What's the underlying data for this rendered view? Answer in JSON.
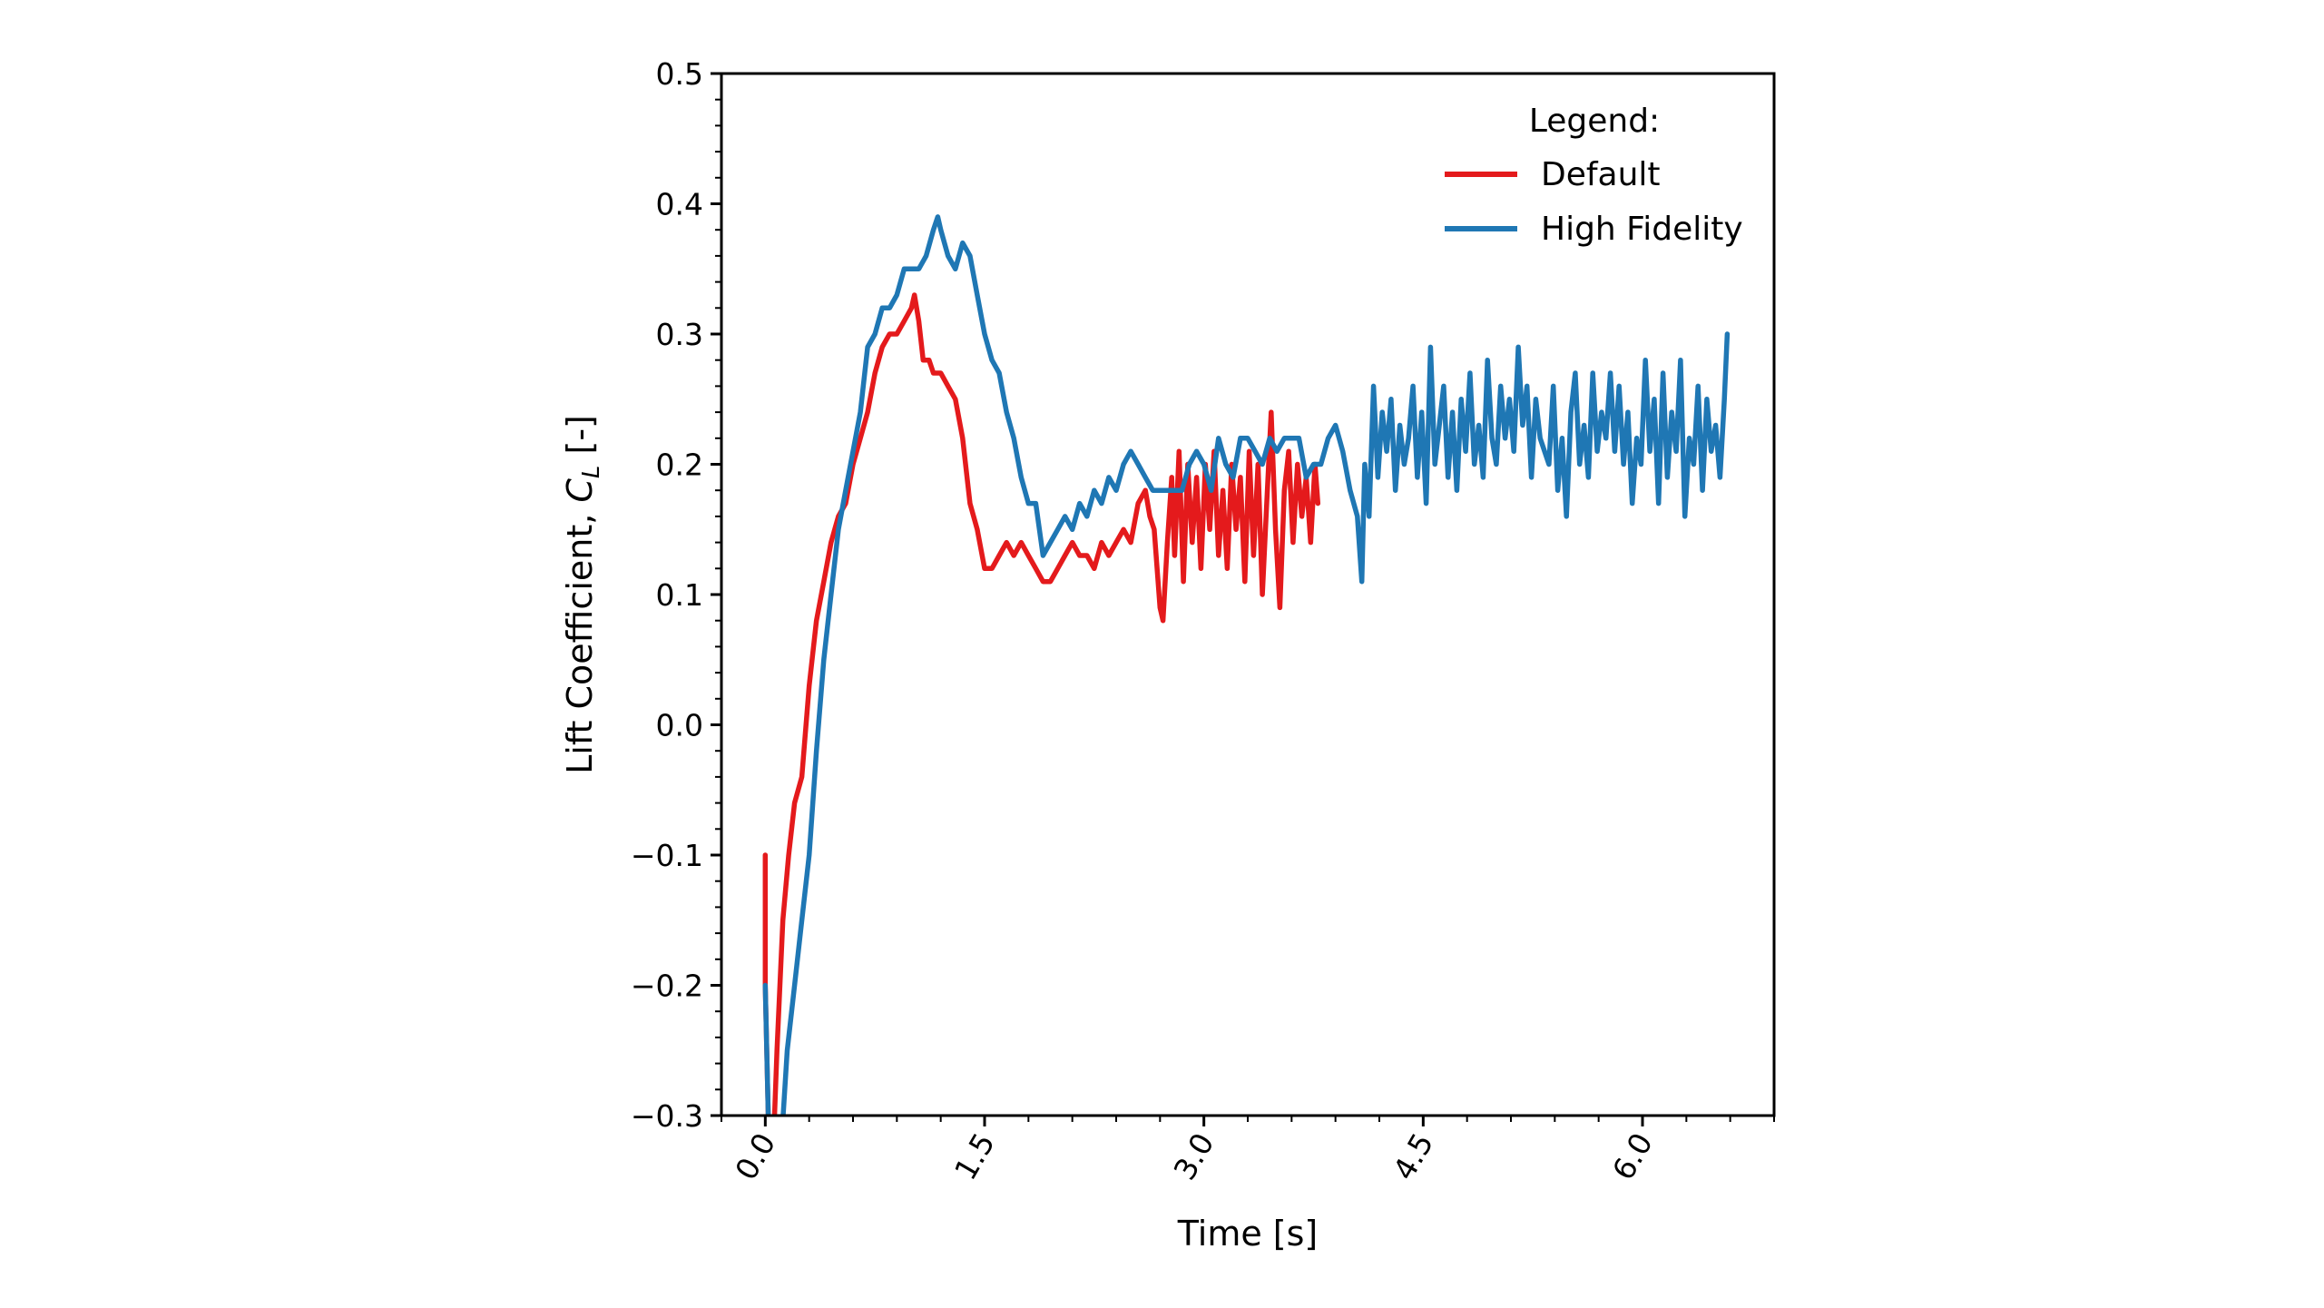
{
  "chart_data": {
    "type": "line",
    "title": "",
    "xlabel": "Time [s]",
    "ylabel_main": "Lift Coefficient, ",
    "ylabel_symbol": "C",
    "ylabel_subscript": "L",
    "ylabel_unit": " [-]",
    "xlim": [
      -0.3,
      6.9
    ],
    "ylim": [
      -0.3,
      0.5
    ],
    "xticks": [
      0.0,
      1.5,
      3.0,
      4.5,
      6.0
    ],
    "xtick_labels": [
      "0.0",
      "1.5",
      "3.0",
      "4.5",
      "6.0"
    ],
    "yticks": [
      -0.3,
      -0.2,
      -0.1,
      0.0,
      0.1,
      0.2,
      0.3,
      0.4,
      0.5
    ],
    "ytick_labels": [
      "−0.3",
      "−0.2",
      "−0.1",
      "0.0",
      "0.1",
      "0.2",
      "0.3",
      "0.4",
      "0.5"
    ],
    "grid": false,
    "legend": {
      "title": "Legend:",
      "placement": "top-right"
    },
    "series": [
      {
        "name": "Default",
        "color": "#e41a1c",
        "points": [
          [
            0.0,
            -0.1
          ],
          [
            0.0,
            -0.2
          ],
          [
            0.02,
            -0.3
          ],
          [
            0.05,
            -0.34
          ],
          [
            0.08,
            -0.25
          ],
          [
            0.12,
            -0.15
          ],
          [
            0.16,
            -0.1
          ],
          [
            0.2,
            -0.06
          ],
          [
            0.25,
            -0.04
          ],
          [
            0.3,
            0.03
          ],
          [
            0.35,
            0.08
          ],
          [
            0.4,
            0.11
          ],
          [
            0.45,
            0.14
          ],
          [
            0.5,
            0.16
          ],
          [
            0.55,
            0.17
          ],
          [
            0.6,
            0.2
          ],
          [
            0.65,
            0.22
          ],
          [
            0.7,
            0.24
          ],
          [
            0.75,
            0.27
          ],
          [
            0.8,
            0.29
          ],
          [
            0.85,
            0.3
          ],
          [
            0.9,
            0.3
          ],
          [
            0.95,
            0.31
          ],
          [
            1.0,
            0.32
          ],
          [
            1.02,
            0.33
          ],
          [
            1.05,
            0.31
          ],
          [
            1.08,
            0.28
          ],
          [
            1.12,
            0.28
          ],
          [
            1.15,
            0.27
          ],
          [
            1.2,
            0.27
          ],
          [
            1.25,
            0.26
          ],
          [
            1.3,
            0.25
          ],
          [
            1.35,
            0.22
          ],
          [
            1.4,
            0.17
          ],
          [
            1.45,
            0.15
          ],
          [
            1.5,
            0.12
          ],
          [
            1.55,
            0.12
          ],
          [
            1.6,
            0.13
          ],
          [
            1.65,
            0.14
          ],
          [
            1.7,
            0.13
          ],
          [
            1.75,
            0.14
          ],
          [
            1.8,
            0.13
          ],
          [
            1.85,
            0.12
          ],
          [
            1.9,
            0.11
          ],
          [
            1.95,
            0.11
          ],
          [
            2.0,
            0.12
          ],
          [
            2.05,
            0.13
          ],
          [
            2.1,
            0.14
          ],
          [
            2.15,
            0.13
          ],
          [
            2.2,
            0.13
          ],
          [
            2.25,
            0.12
          ],
          [
            2.3,
            0.14
          ],
          [
            2.35,
            0.13
          ],
          [
            2.4,
            0.14
          ],
          [
            2.45,
            0.15
          ],
          [
            2.5,
            0.14
          ],
          [
            2.55,
            0.17
          ],
          [
            2.6,
            0.18
          ],
          [
            2.63,
            0.16
          ],
          [
            2.66,
            0.15
          ],
          [
            2.7,
            0.09
          ],
          [
            2.72,
            0.08
          ],
          [
            2.75,
            0.14
          ],
          [
            2.78,
            0.19
          ],
          [
            2.8,
            0.13
          ],
          [
            2.83,
            0.21
          ],
          [
            2.86,
            0.11
          ],
          [
            2.89,
            0.2
          ],
          [
            2.92,
            0.14
          ],
          [
            2.95,
            0.19
          ],
          [
            2.98,
            0.12
          ],
          [
            3.01,
            0.2
          ],
          [
            3.04,
            0.15
          ],
          [
            3.07,
            0.21
          ],
          [
            3.1,
            0.13
          ],
          [
            3.13,
            0.18
          ],
          [
            3.16,
            0.12
          ],
          [
            3.19,
            0.2
          ],
          [
            3.22,
            0.15
          ],
          [
            3.25,
            0.19
          ],
          [
            3.28,
            0.11
          ],
          [
            3.31,
            0.21
          ],
          [
            3.34,
            0.13
          ],
          [
            3.37,
            0.2
          ],
          [
            3.4,
            0.1
          ],
          [
            3.43,
            0.17
          ],
          [
            3.46,
            0.24
          ],
          [
            3.49,
            0.15
          ],
          [
            3.52,
            0.09
          ],
          [
            3.55,
            0.18
          ],
          [
            3.58,
            0.21
          ],
          [
            3.61,
            0.14
          ],
          [
            3.64,
            0.2
          ],
          [
            3.67,
            0.16
          ],
          [
            3.7,
            0.19
          ],
          [
            3.73,
            0.14
          ],
          [
            3.76,
            0.2
          ],
          [
            3.78,
            0.17
          ]
        ]
      },
      {
        "name": "High Fidelity",
        "color": "#1f77b4",
        "points": [
          [
            0.0,
            -0.2
          ],
          [
            0.02,
            -0.3
          ],
          [
            0.05,
            -0.36
          ],
          [
            0.1,
            -0.34
          ],
          [
            0.15,
            -0.25
          ],
          [
            0.2,
            -0.2
          ],
          [
            0.25,
            -0.15
          ],
          [
            0.3,
            -0.1
          ],
          [
            0.35,
            -0.02
          ],
          [
            0.4,
            0.05
          ],
          [
            0.45,
            0.1
          ],
          [
            0.5,
            0.15
          ],
          [
            0.55,
            0.18
          ],
          [
            0.6,
            0.21
          ],
          [
            0.65,
            0.24
          ],
          [
            0.7,
            0.29
          ],
          [
            0.75,
            0.3
          ],
          [
            0.8,
            0.32
          ],
          [
            0.85,
            0.32
          ],
          [
            0.9,
            0.33
          ],
          [
            0.95,
            0.35
          ],
          [
            1.0,
            0.35
          ],
          [
            1.05,
            0.35
          ],
          [
            1.1,
            0.36
          ],
          [
            1.15,
            0.38
          ],
          [
            1.18,
            0.39
          ],
          [
            1.2,
            0.38
          ],
          [
            1.25,
            0.36
          ],
          [
            1.3,
            0.35
          ],
          [
            1.35,
            0.37
          ],
          [
            1.4,
            0.36
          ],
          [
            1.45,
            0.33
          ],
          [
            1.5,
            0.3
          ],
          [
            1.55,
            0.28
          ],
          [
            1.6,
            0.27
          ],
          [
            1.65,
            0.24
          ],
          [
            1.7,
            0.22
          ],
          [
            1.75,
            0.19
          ],
          [
            1.8,
            0.17
          ],
          [
            1.85,
            0.17
          ],
          [
            1.9,
            0.13
          ],
          [
            1.95,
            0.14
          ],
          [
            2.0,
            0.15
          ],
          [
            2.05,
            0.16
          ],
          [
            2.1,
            0.15
          ],
          [
            2.15,
            0.17
          ],
          [
            2.2,
            0.16
          ],
          [
            2.25,
            0.18
          ],
          [
            2.3,
            0.17
          ],
          [
            2.35,
            0.19
          ],
          [
            2.4,
            0.18
          ],
          [
            2.45,
            0.2
          ],
          [
            2.5,
            0.21
          ],
          [
            2.55,
            0.2
          ],
          [
            2.6,
            0.19
          ],
          [
            2.65,
            0.18
          ],
          [
            2.7,
            0.18
          ],
          [
            2.75,
            0.18
          ],
          [
            2.8,
            0.18
          ],
          [
            2.85,
            0.18
          ],
          [
            2.9,
            0.2
          ],
          [
            2.95,
            0.21
          ],
          [
            3.0,
            0.2
          ],
          [
            3.05,
            0.18
          ],
          [
            3.1,
            0.22
          ],
          [
            3.15,
            0.2
          ],
          [
            3.2,
            0.19
          ],
          [
            3.25,
            0.22
          ],
          [
            3.3,
            0.22
          ],
          [
            3.35,
            0.21
          ],
          [
            3.4,
            0.2
          ],
          [
            3.45,
            0.22
          ],
          [
            3.5,
            0.21
          ],
          [
            3.55,
            0.22
          ],
          [
            3.6,
            0.22
          ],
          [
            3.65,
            0.22
          ],
          [
            3.7,
            0.19
          ],
          [
            3.75,
            0.2
          ],
          [
            3.8,
            0.2
          ],
          [
            3.85,
            0.22
          ],
          [
            3.9,
            0.23
          ],
          [
            3.95,
            0.21
          ],
          [
            4.0,
            0.18
          ],
          [
            4.05,
            0.16
          ],
          [
            4.08,
            0.11
          ],
          [
            4.1,
            0.2
          ],
          [
            4.13,
            0.16
          ],
          [
            4.16,
            0.26
          ],
          [
            4.19,
            0.19
          ],
          [
            4.22,
            0.24
          ],
          [
            4.25,
            0.21
          ],
          [
            4.28,
            0.25
          ],
          [
            4.31,
            0.18
          ],
          [
            4.34,
            0.23
          ],
          [
            4.37,
            0.2
          ],
          [
            4.4,
            0.22
          ],
          [
            4.43,
            0.26
          ],
          [
            4.46,
            0.19
          ],
          [
            4.49,
            0.24
          ],
          [
            4.52,
            0.17
          ],
          [
            4.55,
            0.29
          ],
          [
            4.58,
            0.2
          ],
          [
            4.61,
            0.23
          ],
          [
            4.64,
            0.26
          ],
          [
            4.67,
            0.19
          ],
          [
            4.7,
            0.24
          ],
          [
            4.73,
            0.18
          ],
          [
            4.76,
            0.25
          ],
          [
            4.79,
            0.21
          ],
          [
            4.82,
            0.27
          ],
          [
            4.85,
            0.2
          ],
          [
            4.88,
            0.23
          ],
          [
            4.91,
            0.19
          ],
          [
            4.94,
            0.28
          ],
          [
            4.97,
            0.22
          ],
          [
            5.0,
            0.2
          ],
          [
            5.03,
            0.26
          ],
          [
            5.06,
            0.22
          ],
          [
            5.09,
            0.25
          ],
          [
            5.12,
            0.21
          ],
          [
            5.15,
            0.29
          ],
          [
            5.18,
            0.23
          ],
          [
            5.21,
            0.26
          ],
          [
            5.24,
            0.19
          ],
          [
            5.27,
            0.25
          ],
          [
            5.3,
            0.22
          ],
          [
            5.33,
            0.21
          ],
          [
            5.36,
            0.2
          ],
          [
            5.39,
            0.26
          ],
          [
            5.42,
            0.18
          ],
          [
            5.45,
            0.22
          ],
          [
            5.48,
            0.16
          ],
          [
            5.51,
            0.24
          ],
          [
            5.54,
            0.27
          ],
          [
            5.57,
            0.2
          ],
          [
            5.6,
            0.23
          ],
          [
            5.63,
            0.19
          ],
          [
            5.66,
            0.27
          ],
          [
            5.69,
            0.21
          ],
          [
            5.72,
            0.24
          ],
          [
            5.75,
            0.22
          ],
          [
            5.78,
            0.27
          ],
          [
            5.81,
            0.21
          ],
          [
            5.84,
            0.26
          ],
          [
            5.87,
            0.2
          ],
          [
            5.9,
            0.24
          ],
          [
            5.93,
            0.17
          ],
          [
            5.96,
            0.22
          ],
          [
            5.99,
            0.2
          ],
          [
            6.02,
            0.28
          ],
          [
            6.05,
            0.21
          ],
          [
            6.08,
            0.25
          ],
          [
            6.11,
            0.17
          ],
          [
            6.14,
            0.27
          ],
          [
            6.17,
            0.19
          ],
          [
            6.2,
            0.24
          ],
          [
            6.23,
            0.21
          ],
          [
            6.26,
            0.28
          ],
          [
            6.29,
            0.16
          ],
          [
            6.32,
            0.22
          ],
          [
            6.35,
            0.2
          ],
          [
            6.38,
            0.26
          ],
          [
            6.41,
            0.18
          ],
          [
            6.44,
            0.25
          ],
          [
            6.47,
            0.21
          ],
          [
            6.5,
            0.23
          ],
          [
            6.53,
            0.19
          ],
          [
            6.56,
            0.25
          ],
          [
            6.58,
            0.3
          ]
        ]
      }
    ]
  }
}
